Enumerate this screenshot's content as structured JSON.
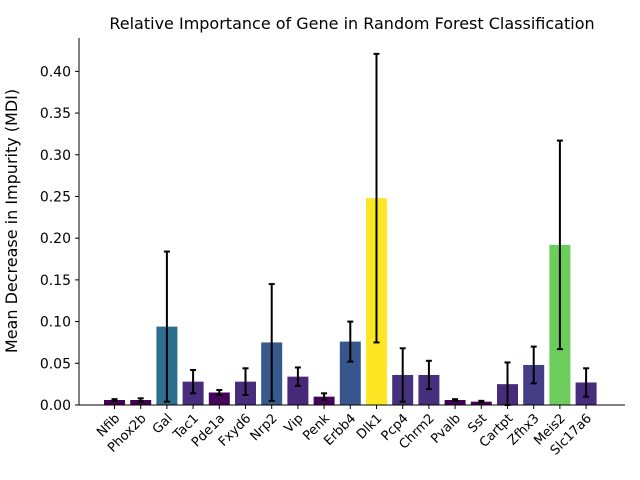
{
  "chart_data": {
    "type": "bar",
    "title": "Relative Importance of Gene in Random Forest Classification",
    "xlabel": "",
    "ylabel": "Mean Decrease in Impurity (MDI)",
    "ylim": [
      0,
      0.44
    ],
    "yticks": [
      "0.00",
      "0.05",
      "0.10",
      "0.15",
      "0.20",
      "0.25",
      "0.30",
      "0.35",
      "0.40"
    ],
    "ytick_values": [
      0,
      0.05,
      0.1,
      0.15,
      0.2,
      0.25,
      0.3,
      0.35,
      0.4
    ],
    "grid": false,
    "legend": "none",
    "categories": [
      "Nfib",
      "Phox2b",
      "Gal",
      "Tac1",
      "Pde1a",
      "Fxyd6",
      "Nrp2",
      "Vip",
      "Penk",
      "Erbb4",
      "Dlk1",
      "Pcp4",
      "Chrm2",
      "Pvalb",
      "Sst",
      "Cartpt",
      "Zfhx3",
      "Meis2",
      "Slc17a6"
    ],
    "values": [
      0.006,
      0.006,
      0.094,
      0.028,
      0.015,
      0.028,
      0.075,
      0.034,
      0.01,
      0.076,
      0.248,
      0.036,
      0.036,
      0.006,
      0.004,
      0.025,
      0.048,
      0.192,
      0.027
    ],
    "errors": [
      0.001,
      0.002,
      0.09,
      0.014,
      0.003,
      0.016,
      0.07,
      0.011,
      0.004,
      0.024,
      0.173,
      0.032,
      0.017,
      0.001,
      0.001,
      0.026,
      0.022,
      0.125,
      0.017
    ],
    "colors": [
      "#440154",
      "#440154",
      "#2e6e8e",
      "#472d7b",
      "#450559",
      "#472d7b",
      "#38598c",
      "#482878",
      "#450457",
      "#39568c",
      "#fde725",
      "#46317e",
      "#46307e",
      "#440154",
      "#440154",
      "#472c7a",
      "#433e85",
      "#6ccd5a",
      "#472d7b"
    ]
  }
}
